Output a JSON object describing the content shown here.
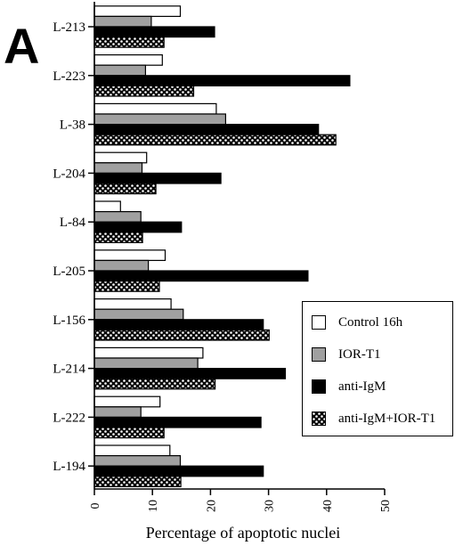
{
  "panel_label": "A",
  "chart_data": {
    "type": "bar",
    "orientation": "horizontal",
    "xlabel": "Percentage of apoptotic nuclei",
    "ylabel": "",
    "xlim": [
      0,
      50
    ],
    "xticks": [
      0,
      10,
      20,
      30,
      40,
      50
    ],
    "legend_position": "right-bottom",
    "categories": [
      "L-213",
      "L-223",
      "L-38",
      "L-204",
      "L-84",
      "L-205",
      "L-156",
      "L-214",
      "L-222",
      "L-194"
    ],
    "series": [
      {
        "name": "Control 16h",
        "fill": "white",
        "values": [
          14.8,
          11.7,
          21.0,
          9.0,
          4.5,
          12.2,
          13.2,
          18.7,
          11.3,
          13.0
        ]
      },
      {
        "name": "IOR-T1",
        "fill": "gray",
        "values": [
          9.8,
          8.8,
          22.6,
          8.2,
          8.0,
          9.3,
          15.3,
          17.8,
          8.0,
          14.8
        ]
      },
      {
        "name": "anti-IgM",
        "fill": "black",
        "values": [
          20.7,
          44.0,
          38.6,
          21.8,
          15.0,
          36.8,
          29.1,
          32.9,
          28.7,
          29.1
        ]
      },
      {
        "name": "anti-IgM+IOR-T1",
        "fill": "dotted",
        "values": [
          12.0,
          17.1,
          41.6,
          10.6,
          8.3,
          11.2,
          30.1,
          20.8,
          12.0,
          14.9
        ]
      }
    ]
  }
}
